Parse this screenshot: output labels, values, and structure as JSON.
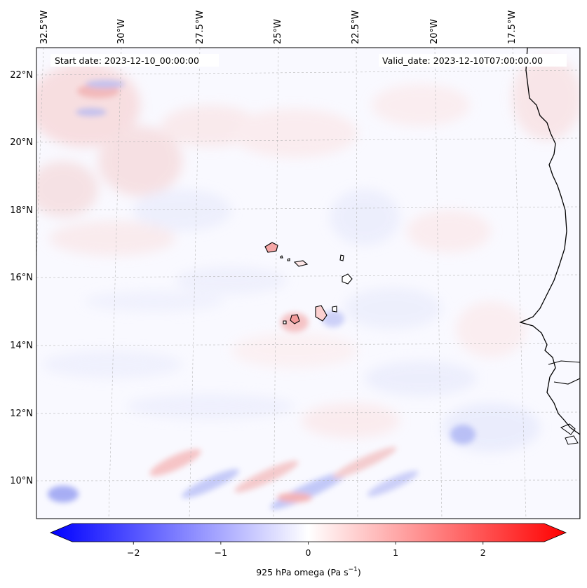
{
  "header": {
    "start_date": "Start date: 2023-12-10_00:00:00",
    "valid_date": "Valid_date: 2023-12-10T07:00:00.00"
  },
  "map": {
    "lon_labels": [
      "32.5°W",
      "30°W",
      "27.5°W",
      "25°W",
      "22.5°W",
      "20°W",
      "17.5°W"
    ],
    "lat_labels": [
      "22°N",
      "20°N",
      "18°N",
      "16°N",
      "14°N",
      "12°N",
      "10°N"
    ],
    "colors": {
      "negative": "#0000ff",
      "neutral": "#ffffff",
      "positive": "#ff0000",
      "coast": "#000000",
      "grid": "#b0b0b0"
    }
  },
  "colorbar": {
    "ticks": [
      "−2",
      "−1",
      "0",
      "1",
      "2"
    ],
    "tick_values": [
      -2,
      -1,
      0,
      1,
      2
    ],
    "range": [
      -2.7,
      2.7
    ],
    "label_main": "925 hPa omega (Pa s",
    "label_exp": "−1",
    "label_close": ")"
  }
}
